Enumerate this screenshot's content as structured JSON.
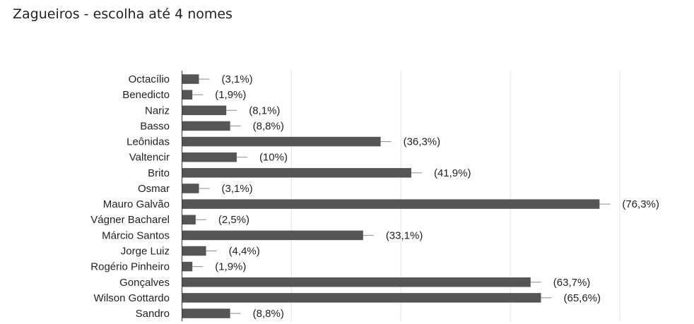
{
  "title": "Zagueiros - escolha até 4 nomes",
  "chart_data": {
    "type": "bar",
    "orientation": "horizontal",
    "title": "Zagueiros - escolha até 4 nomes",
    "xlabel": "",
    "ylabel": "",
    "xlim": [
      0,
      80
    ],
    "grid": true,
    "legend": "none",
    "bar_color": "#555555",
    "categories": [
      "Octacílio",
      "Benedicto",
      "Nariz",
      "Basso",
      "Leônidas",
      "Valtencir",
      "Brito",
      "Osmar",
      "Mauro Galvão",
      "Vágner Bacharel",
      "Márcio Santos",
      "Jorge Luiz",
      "Rogério Pinheiro",
      "Gonçalves",
      "Wilson Gottardo",
      "Sandro"
    ],
    "values": [
      3.1,
      1.9,
      8.1,
      8.8,
      36.3,
      10,
      41.9,
      3.1,
      76.3,
      2.5,
      33.1,
      4.4,
      1.9,
      63.7,
      65.6,
      8.8
    ],
    "labels": [
      "(3,1%)",
      "(1,9%)",
      "(8,1%)",
      "(8,8%)",
      "(36,3%)",
      "(10%)",
      "(41,9%)",
      "(3,1%)",
      "(76,3%)",
      "(2,5%)",
      "(33,1%)",
      "(4,4%)",
      "(1,9%)",
      "(63,7%)",
      "(65,6%)",
      "(8,8%)"
    ]
  }
}
